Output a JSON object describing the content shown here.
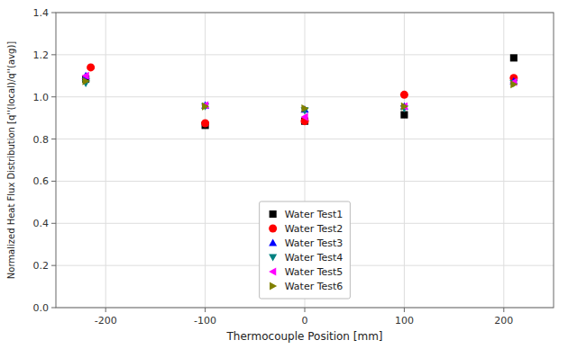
{
  "chart_data": {
    "type": "scatter",
    "title": "",
    "xlabel": "Thermocouple Position [mm]",
    "ylabel": "Normalized Heat Flux Distribution [q''(local)/q''(avg)]",
    "xlim": [
      -250,
      250
    ],
    "ylim": [
      0.0,
      1.4
    ],
    "xticks": [
      -200,
      -100,
      0,
      100,
      200
    ],
    "yticks": [
      {
        "value": 0.0,
        "label": "0.0"
      },
      0.2,
      0.4,
      0.6,
      0.8,
      {
        "value": 1.0,
        "label": "1.0"
      },
      1.2,
      1.4
    ],
    "grid": true,
    "legend": "lower center",
    "series": [
      {
        "name": "Water Test1",
        "color": "#000000",
        "marker": "square",
        "x": [
          -220,
          -100,
          0,
          100,
          210
        ],
        "values": [
          1.085,
          0.865,
          0.885,
          0.915,
          1.185
        ]
      },
      {
        "name": "Water Test2",
        "color": "#ff0000",
        "marker": "circle",
        "x": [
          -215,
          -100,
          0,
          100,
          210
        ],
        "values": [
          1.14,
          0.875,
          0.885,
          1.01,
          1.09
        ]
      },
      {
        "name": "Water Test3",
        "color": "#0000ff",
        "marker": "triangle-up",
        "x": [
          -220,
          -100,
          0,
          100,
          210
        ],
        "values": [
          1.1,
          0.96,
          0.94,
          0.955,
          1.075
        ]
      },
      {
        "name": "Water Test4",
        "color": "#008080",
        "marker": "triangle-down",
        "x": [
          -220,
          -100,
          0,
          100,
          210
        ],
        "values": [
          1.065,
          0.955,
          0.935,
          0.945,
          1.065
        ]
      },
      {
        "name": "Water Test5",
        "color": "#ff00ff",
        "marker": "triangle-left",
        "x": [
          -220,
          -100,
          0,
          100,
          210
        ],
        "values": [
          1.1,
          0.96,
          0.905,
          0.955,
          1.07
        ]
      },
      {
        "name": "Water Test6",
        "color": "#808000",
        "marker": "triangle-right",
        "x": [
          -220,
          -100,
          0,
          100,
          210
        ],
        "values": [
          1.075,
          0.955,
          0.945,
          0.955,
          1.06
        ]
      }
    ]
  }
}
